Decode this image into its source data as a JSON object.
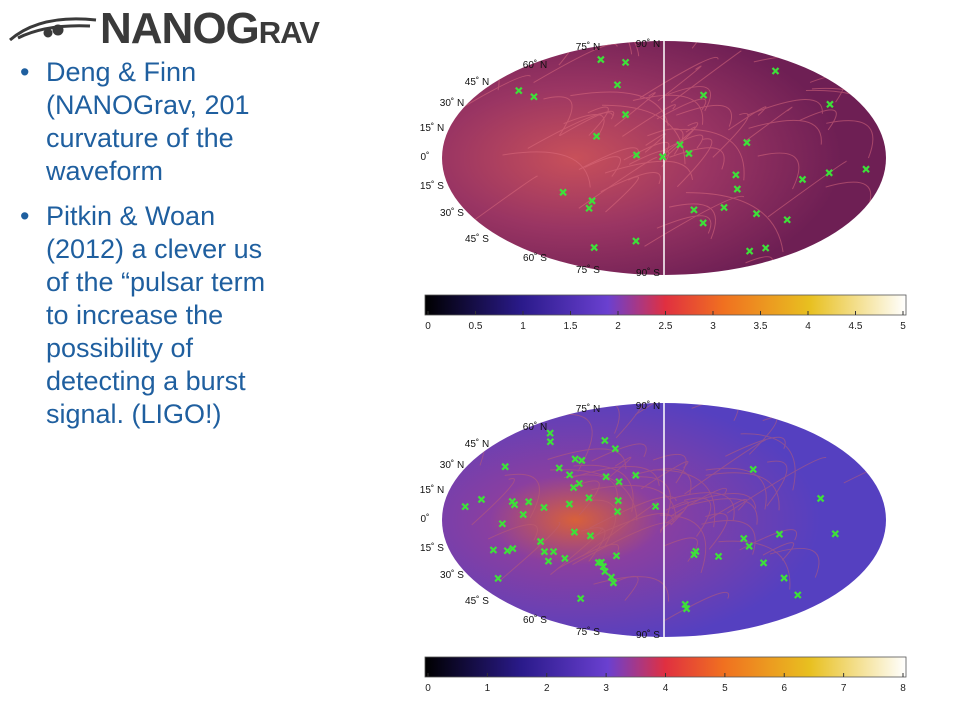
{
  "logo": "NANOGrav",
  "bullets": [
    [
      "Deng & Finn",
      "(NANOGrav, 201",
      "curvature of the",
      "waveform"
    ],
    [
      "Pitkin & Woan",
      "(2012) a clever us",
      "of the “pulsar term",
      "to increase the",
      "possibility of",
      "detecting a burst",
      "signal. (LIGO!)"
    ]
  ],
  "grid_labels": [
    "75˚ N",
    "90˚ N",
    "60˚ N",
    "45˚ N",
    "30˚ N",
    "15˚ N",
    "0˚",
    "15˚ S",
    "30˚ S",
    "45˚ S",
    "60˚ S",
    "75˚ S",
    "90˚ S"
  ],
  "maps": [
    {
      "colorbar": {
        "lim": [
          0,
          5
        ],
        "ticks": [
          0,
          0.5,
          1,
          1.5,
          2,
          2.5,
          3,
          3.5,
          4,
          4.5,
          5
        ]
      }
    },
    {
      "colorbar": {
        "lim": [
          0,
          8
        ],
        "ticks": [
          0,
          1,
          2,
          3,
          4,
          5,
          6,
          7,
          8
        ]
      }
    }
  ]
}
